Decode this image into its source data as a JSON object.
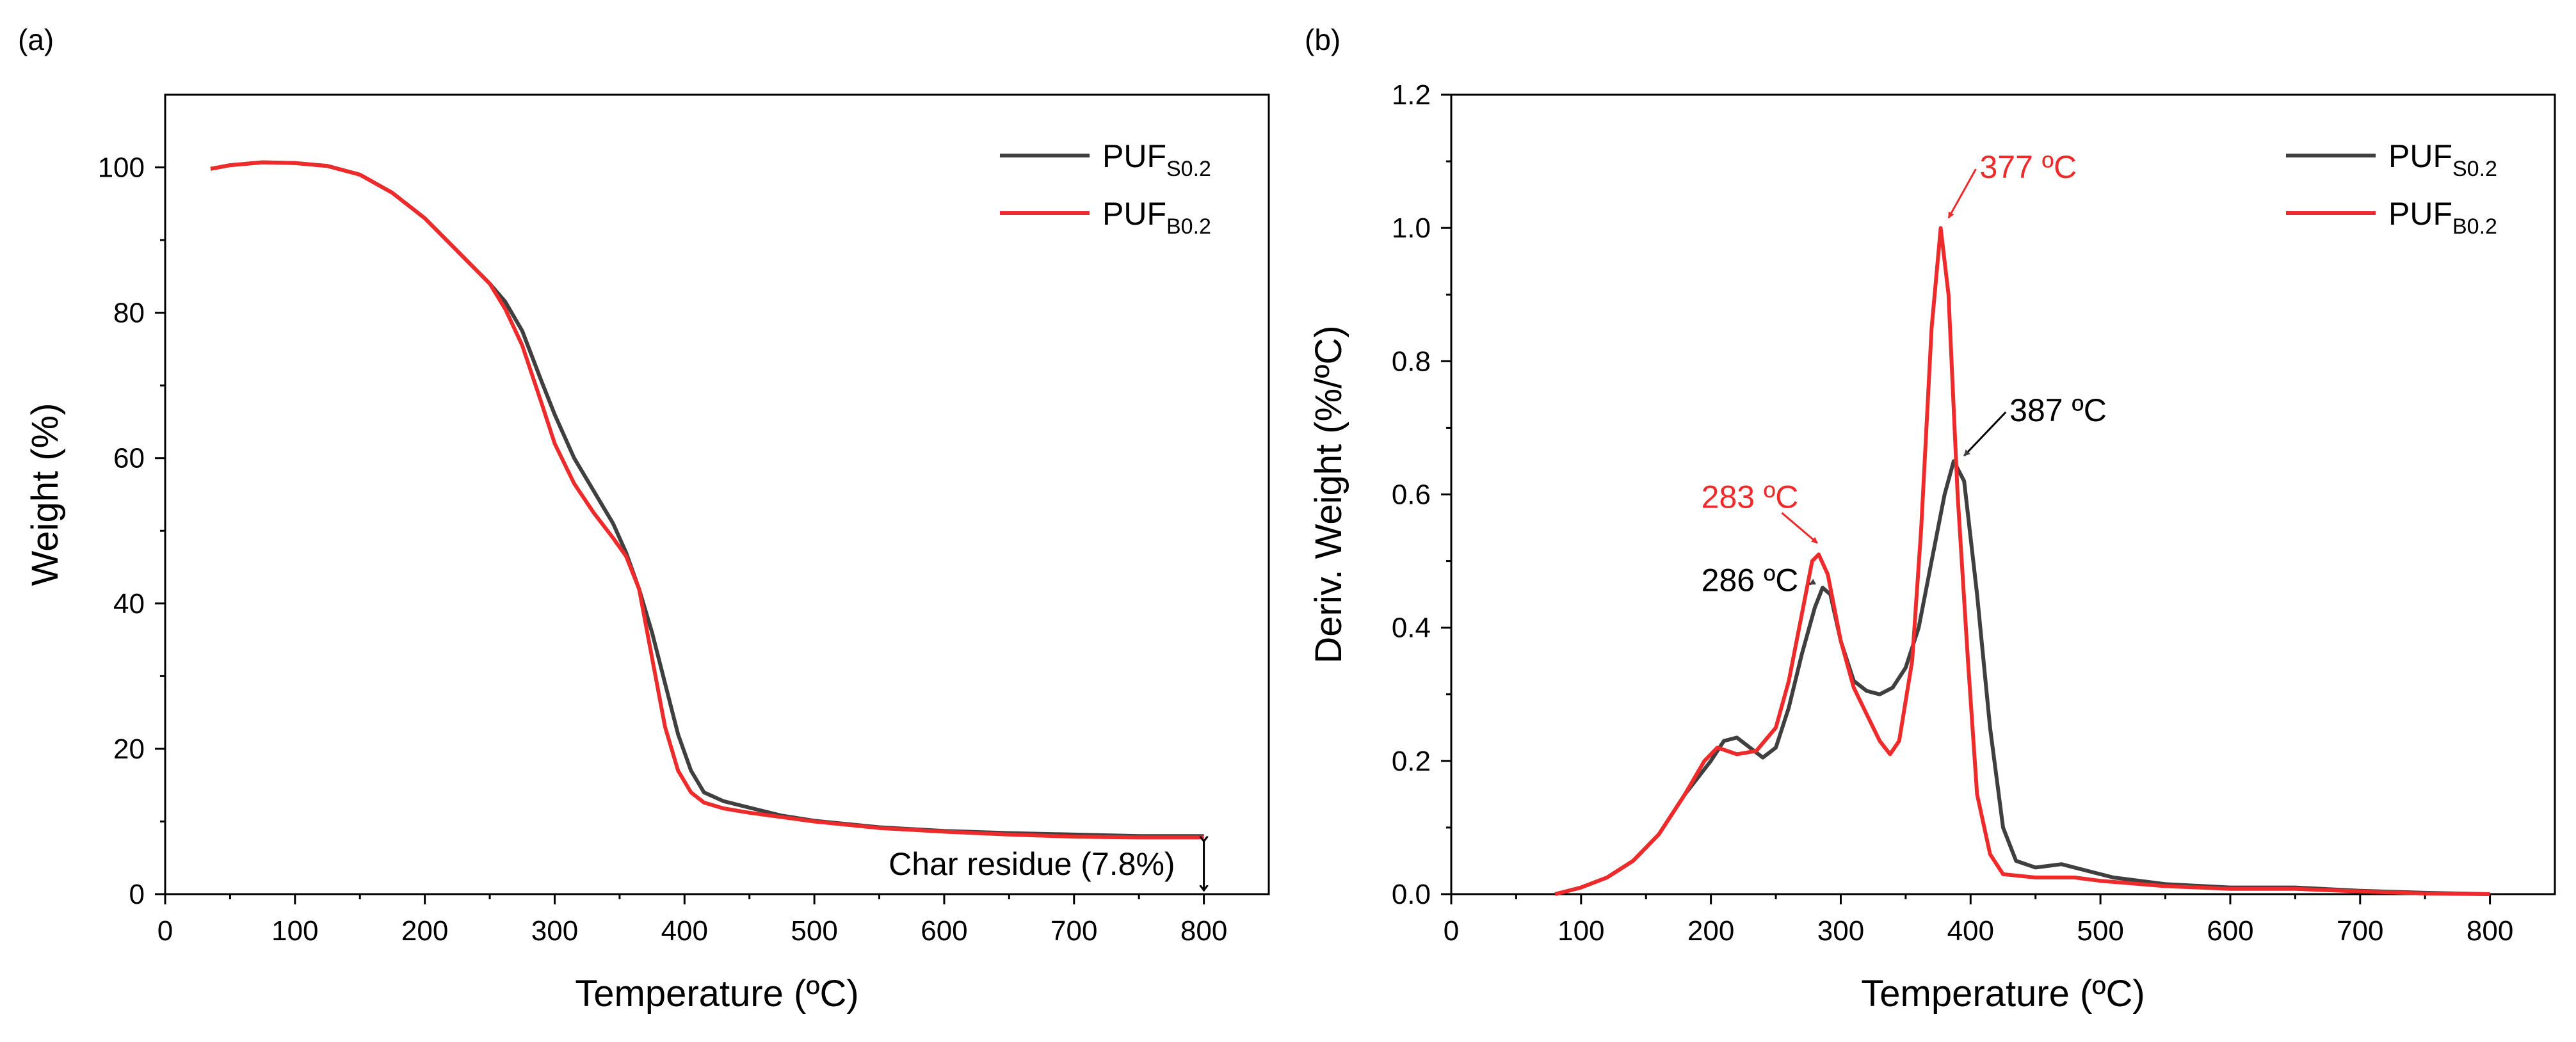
{
  "colors": {
    "s02": "#3f3f3f",
    "b02": "#ee2a2a",
    "axis": "#000000"
  },
  "chart_data": [
    {
      "panel_label": "(a)",
      "type": "line",
      "xlabel": "Temperature (ºC)",
      "ylabel": "Weight (%)",
      "xlim": [
        0,
        850
      ],
      "ylim": [
        0,
        110
      ],
      "xticks": [
        0,
        100,
        200,
        300,
        400,
        500,
        600,
        700,
        800
      ],
      "yticks": [
        0,
        20,
        40,
        60,
        80,
        100
      ],
      "legend_position": "top-right",
      "series": [
        {
          "name": "PUF",
          "sub": "S0.2",
          "color_key": "s02",
          "points": [
            [
              35,
              99.8
            ],
            [
              50,
              100.3
            ],
            [
              75,
              100.7
            ],
            [
              100,
              100.6
            ],
            [
              125,
              100.2
            ],
            [
              150,
              99
            ],
            [
              175,
              96.5
            ],
            [
              200,
              93
            ],
            [
              225,
              88.5
            ],
            [
              250,
              84
            ],
            [
              262,
              81.5
            ],
            [
              275,
              77.5
            ],
            [
              290,
              70.5
            ],
            [
              300,
              66
            ],
            [
              315,
              60
            ],
            [
              330,
              55.5
            ],
            [
              345,
              51
            ],
            [
              355,
              47
            ],
            [
              365,
              42
            ],
            [
              375,
              36
            ],
            [
              385,
              29
            ],
            [
              395,
              22
            ],
            [
              405,
              17
            ],
            [
              415,
              14
            ],
            [
              430,
              12.8
            ],
            [
              450,
              11.9
            ],
            [
              475,
              10.8
            ],
            [
              500,
              10.1
            ],
            [
              550,
              9.2
            ],
            [
              600,
              8.7
            ],
            [
              650,
              8.4
            ],
            [
              700,
              8.2
            ],
            [
              750,
              8.0
            ],
            [
              800,
              8.0
            ]
          ]
        },
        {
          "name": "PUF",
          "sub": "B0.2",
          "color_key": "b02",
          "points": [
            [
              35,
              99.8
            ],
            [
              50,
              100.3
            ],
            [
              75,
              100.7
            ],
            [
              100,
              100.6
            ],
            [
              125,
              100.2
            ],
            [
              150,
              99
            ],
            [
              175,
              96.5
            ],
            [
              200,
              93
            ],
            [
              225,
              88.5
            ],
            [
              250,
              84
            ],
            [
              262,
              80.5
            ],
            [
              275,
              75.5
            ],
            [
              290,
              67.5
            ],
            [
              300,
              62
            ],
            [
              315,
              56.5
            ],
            [
              330,
              52.5
            ],
            [
              345,
              49
            ],
            [
              355,
              46.5
            ],
            [
              365,
              42
            ],
            [
              375,
              32.5
            ],
            [
              385,
              23
            ],
            [
              395,
              17
            ],
            [
              405,
              14
            ],
            [
              415,
              12.6
            ],
            [
              430,
              11.8
            ],
            [
              450,
              11.2
            ],
            [
              475,
              10.6
            ],
            [
              500,
              10
            ],
            [
              550,
              9.1
            ],
            [
              600,
              8.6
            ],
            [
              650,
              8.2
            ],
            [
              700,
              7.9
            ],
            [
              750,
              7.8
            ],
            [
              800,
              7.8
            ]
          ]
        }
      ],
      "annotation": {
        "text": "Char residue (7.8%)",
        "x": 800,
        "y_top": 7.8
      }
    },
    {
      "panel_label": "(b)",
      "type": "line",
      "xlabel": "Temperature (ºC)",
      "ylabel": "Deriv. Weight (%/ºC)",
      "xlim": [
        0,
        850
      ],
      "ylim": [
        0,
        1.2
      ],
      "xticks": [
        0,
        100,
        200,
        300,
        400,
        500,
        600,
        700,
        800
      ],
      "yticks": [
        0,
        0.2,
        0.4,
        0.6,
        0.8,
        1.0,
        1.2
      ],
      "ytick_labels": [
        "0.0",
        "0.2",
        "0.4",
        "0.6",
        "0.8",
        "1.0",
        "1.2"
      ],
      "legend_position": "top-right",
      "series": [
        {
          "name": "PUF",
          "sub": "S0.2",
          "color_key": "s02",
          "points": [
            [
              80,
              0
            ],
            [
              100,
              0.01
            ],
            [
              120,
              0.025
            ],
            [
              140,
              0.05
            ],
            [
              160,
              0.09
            ],
            [
              180,
              0.15
            ],
            [
              200,
              0.2
            ],
            [
              210,
              0.23
            ],
            [
              220,
              0.235
            ],
            [
              230,
              0.22
            ],
            [
              240,
              0.205
            ],
            [
              250,
              0.22
            ],
            [
              260,
              0.28
            ],
            [
              270,
              0.36
            ],
            [
              280,
              0.43
            ],
            [
              286,
              0.46
            ],
            [
              292,
              0.45
            ],
            [
              300,
              0.38
            ],
            [
              310,
              0.32
            ],
            [
              320,
              0.305
            ],
            [
              330,
              0.3
            ],
            [
              340,
              0.31
            ],
            [
              350,
              0.34
            ],
            [
              360,
              0.4
            ],
            [
              370,
              0.5
            ],
            [
              380,
              0.6
            ],
            [
              387,
              0.65
            ],
            [
              395,
              0.62
            ],
            [
              405,
              0.45
            ],
            [
              415,
              0.25
            ],
            [
              425,
              0.1
            ],
            [
              435,
              0.05
            ],
            [
              450,
              0.04
            ],
            [
              470,
              0.045
            ],
            [
              490,
              0.035
            ],
            [
              510,
              0.025
            ],
            [
              550,
              0.015
            ],
            [
              600,
              0.01
            ],
            [
              650,
              0.01
            ],
            [
              700,
              0.005
            ],
            [
              750,
              0.002
            ],
            [
              800,
              0
            ]
          ]
        },
        {
          "name": "PUF",
          "sub": "B0.2",
          "color_key": "b02",
          "points": [
            [
              80,
              0
            ],
            [
              100,
              0.01
            ],
            [
              120,
              0.025
            ],
            [
              140,
              0.05
            ],
            [
              160,
              0.09
            ],
            [
              180,
              0.15
            ],
            [
              195,
              0.2
            ],
            [
              205,
              0.22
            ],
            [
              220,
              0.21
            ],
            [
              235,
              0.215
            ],
            [
              250,
              0.25
            ],
            [
              260,
              0.32
            ],
            [
              270,
              0.42
            ],
            [
              278,
              0.5
            ],
            [
              283,
              0.51
            ],
            [
              290,
              0.48
            ],
            [
              300,
              0.38
            ],
            [
              310,
              0.31
            ],
            [
              320,
              0.27
            ],
            [
              330,
              0.23
            ],
            [
              338,
              0.21
            ],
            [
              345,
              0.23
            ],
            [
              355,
              0.35
            ],
            [
              362,
              0.55
            ],
            [
              370,
              0.85
            ],
            [
              377,
              1.0
            ],
            [
              383,
              0.9
            ],
            [
              390,
              0.6
            ],
            [
              398,
              0.35
            ],
            [
              405,
              0.15
            ],
            [
              415,
              0.06
            ],
            [
              425,
              0.03
            ],
            [
              450,
              0.025
            ],
            [
              480,
              0.025
            ],
            [
              500,
              0.02
            ],
            [
              550,
              0.012
            ],
            [
              600,
              0.008
            ],
            [
              650,
              0.008
            ],
            [
              700,
              0.004
            ],
            [
              750,
              0.001
            ],
            [
              800,
              0
            ]
          ]
        }
      ],
      "peak_labels": [
        {
          "text": "377 ºC",
          "color_key": "b02",
          "x": 377,
          "y": 1.0,
          "tx": 407,
          "ty": 1.075,
          "ax": 383,
          "ay": 1.015
        },
        {
          "text": "387 ºC",
          "color_key": "s02",
          "x": 387,
          "y": 0.65,
          "tx": 430,
          "ty": 0.71,
          "ax": 395,
          "ay": 0.658
        },
        {
          "text": "283 ºC",
          "color_key": "b02",
          "x": 283,
          "y": 0.51,
          "tx": 230,
          "ty": 0.58,
          "ax": 282,
          "ay": 0.527
        },
        {
          "text": "286 ºC",
          "color_key": "s02",
          "x": 286,
          "y": 0.46,
          "tx": 230,
          "ty": 0.455,
          "ax": 276,
          "ay": 0.465
        }
      ]
    }
  ]
}
